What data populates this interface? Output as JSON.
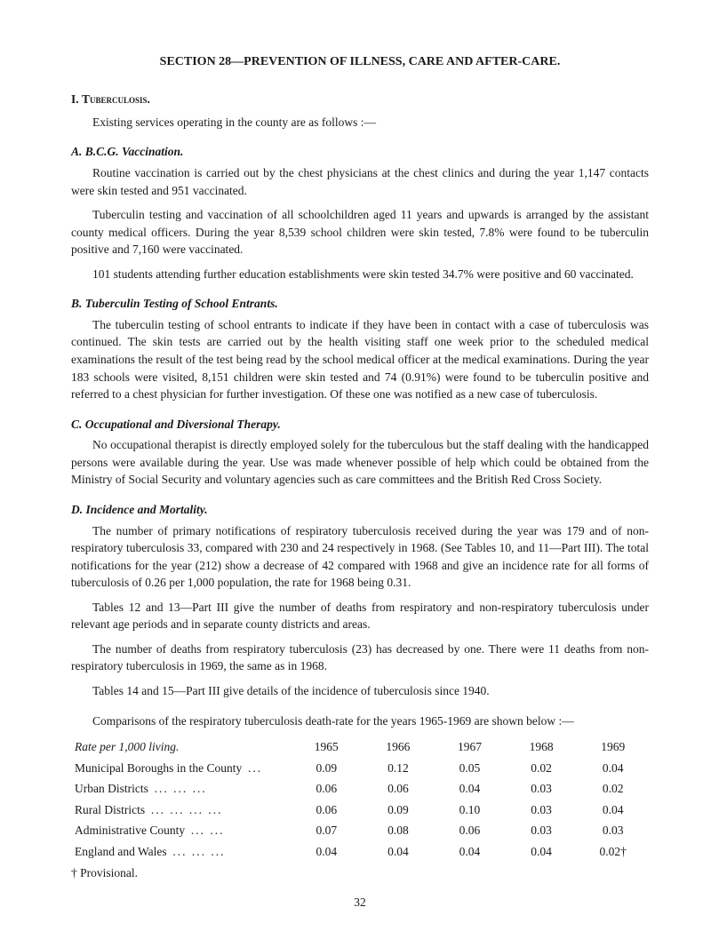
{
  "section_title": "SECTION 28—PREVENTION OF ILLNESS, CARE AND AFTER-CARE.",
  "main": {
    "num": "I.",
    "title": "Tuberculosis.",
    "intro": "Existing services operating in the county are as follows :—"
  },
  "A": {
    "letter": "A.",
    "title": "B.C.G. Vaccination.",
    "p1": "Routine vaccination is carried out by the chest physicians at the chest clinics and during the year 1,147 contacts were skin tested and 951 vaccinated.",
    "p2": "Tuberculin testing and vaccination of all schoolchildren aged 11 years and upwards is arranged by the assistant county medical officers. During the year 8,539 school children were skin tested, 7.8% were found to be tuberculin positive and 7,160 were vaccinated.",
    "p3": "101 students attending further education establishments were skin tested 34.7% were positive and 60 vaccinated."
  },
  "B": {
    "letter": "B.",
    "title": "Tuberculin Testing of School Entrants.",
    "p1": "The tuberculin testing of school entrants to indicate if they have been in contact with a case of tuberculosis was continued. The skin tests are carried out by the health visiting staff one week prior to the scheduled medical examinations the result of the test being read by the school medical officer at the medical examinations. During the year 183 schools were visited, 8,151 children were skin tested and 74 (0.91%) were found to be tuberculin positive and referred to a chest physician for further investigation. Of these one was notified as a new case of tuberculosis."
  },
  "C": {
    "letter": "C.",
    "title": "Occupational and Diversional Therapy.",
    "p1": "No occupational therapist is directly employed solely for the tuberculous but the staff dealing with the handicapped persons were available during the year. Use was made whenever possible of help which could be obtained from the Ministry of Social Security and voluntary agencies such as care committees and the British Red Cross Society."
  },
  "D": {
    "letter": "D.",
    "title": "Incidence and Mortality.",
    "p1": "The number of primary notifications of respiratory tuberculosis received during the year was 179 and of non-respiratory tuberculosis 33, compared with 230 and 24 respectively in 1968. (See Tables 10, and 11—Part III). The total notifications for the year (212) show a decrease of 42 compared with 1968 and give an incidence rate for all forms of tuberculosis of 0.26 per 1,000 population, the rate for 1968 being 0.31.",
    "p2": "Tables 12 and 13—Part III give the number of deaths from respiratory and non-respiratory tuberculosis under relevant age periods and in separate county districts and areas.",
    "p3": "The number of deaths from respiratory tuberculosis (23) has decreased by one. There were 11 deaths from non-respiratory tuberculosis in 1969, the same as in 1968.",
    "p4": "Tables 14 and 15—Part III give details of the incidence of tuberculosis since 1940."
  },
  "table": {
    "intro": "Comparisons of the respiratory tuberculosis death-rate for the years 1965-1969 are shown below :—",
    "header_label": "Rate per 1,000 living.",
    "years": [
      "1965",
      "1966",
      "1967",
      "1968",
      "1969"
    ],
    "rows": [
      {
        "label": "Municipal Boroughs in the County",
        "dots": "...",
        "vals": [
          "0.09",
          "0.12",
          "0.05",
          "0.02",
          "0.04"
        ]
      },
      {
        "label": "Urban Districts",
        "dots": "...   ...   ...",
        "vals": [
          "0.06",
          "0.06",
          "0.04",
          "0.03",
          "0.02"
        ]
      },
      {
        "label": "Rural Districts",
        "dots": "...   ...   ...   ...",
        "vals": [
          "0.06",
          "0.09",
          "0.10",
          "0.03",
          "0.04"
        ]
      },
      {
        "label": "Administrative County",
        "dots": "...   ...",
        "vals": [
          "0.07",
          "0.08",
          "0.06",
          "0.03",
          "0.03"
        ]
      },
      {
        "label": "England and Wales",
        "dots": "...   ...   ...",
        "vals": [
          "0.04",
          "0.04",
          "0.04",
          "0.04",
          "0.02†"
        ]
      }
    ],
    "footnote": "† Provisional."
  },
  "page_number": "32"
}
